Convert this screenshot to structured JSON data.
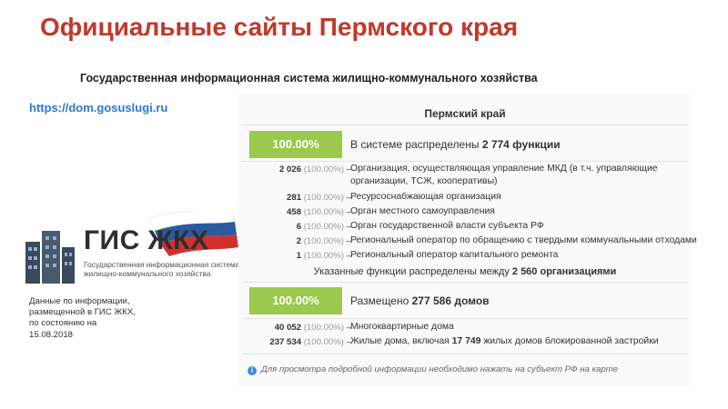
{
  "title": "Официальные сайты Пермского края",
  "subtitle": "Государственная информационная система жилищно-коммунального хозяйства",
  "link": "https://dom.gosuslugi.ru",
  "logo": {
    "name": "ГИС ЖКХ",
    "line1": "Государственная информационная система",
    "line2": "жилищно-коммунального хозяйства"
  },
  "note": "Данные по информации, размещенной в ГИС ЖКХ, по состоянию на 15.08.2018",
  "panel": {
    "region": "Пермский край",
    "functions": {
      "badge": "100.00%",
      "lead": "В системе распределены ",
      "count": "2 774 функции",
      "rows": [
        {
          "num": "2 026",
          "pct": "(100.00%)",
          "dash": "–",
          "text": "Организация, осуществляющая управление МКД (в т.ч. управляющие",
          "text2": "организации, ТСЖ, кооперативы)"
        },
        {
          "num": "281",
          "pct": "(100.00%)",
          "dash": "–",
          "text": "Ресурсоснабжающая организация"
        },
        {
          "num": "458",
          "pct": "(100.00%)",
          "dash": "–",
          "text": "Орган местного самоуправления"
        },
        {
          "num": "6",
          "pct": "(100.00%)",
          "dash": "–",
          "text": "Орган государственной власти субъекта РФ"
        },
        {
          "num": "2",
          "pct": "(100.00%)",
          "dash": "–",
          "text": "Региональный оператор по обращению с твердыми коммунальными отходами"
        },
        {
          "num": "1",
          "pct": "(100.00%)",
          "dash": "–",
          "text": "Региональный оператор капитального ремонта"
        }
      ]
    },
    "orgs": {
      "lead": "Указанные функции распределены между ",
      "count": "2 560 организациями"
    },
    "houses": {
      "badge": "100.00%",
      "lead": "Размещено ",
      "count": "277 586 домов",
      "rows": [
        {
          "num": "40 052",
          "pct": "(100.00%)",
          "dash": "–",
          "text": "Многоквартирные дома"
        },
        {
          "num": "237 534",
          "pct": "(100.00%)",
          "dash": "–",
          "text_a": "Жилые дома, включая ",
          "text_b": "17 749",
          "text_c": " жилых домов блокированной застройки"
        }
      ]
    },
    "footnote": "Для просмотра подробной информации необходимо нажать на субъект РФ на карте",
    "info_icon": "info-icon"
  },
  "colors": {
    "title": "#c0392b",
    "link": "#2b78d8",
    "badge": "#9ac94d",
    "flag_white": "#ffffff",
    "flag_blue": "#2c5aa0",
    "flag_red": "#d32f2f"
  }
}
